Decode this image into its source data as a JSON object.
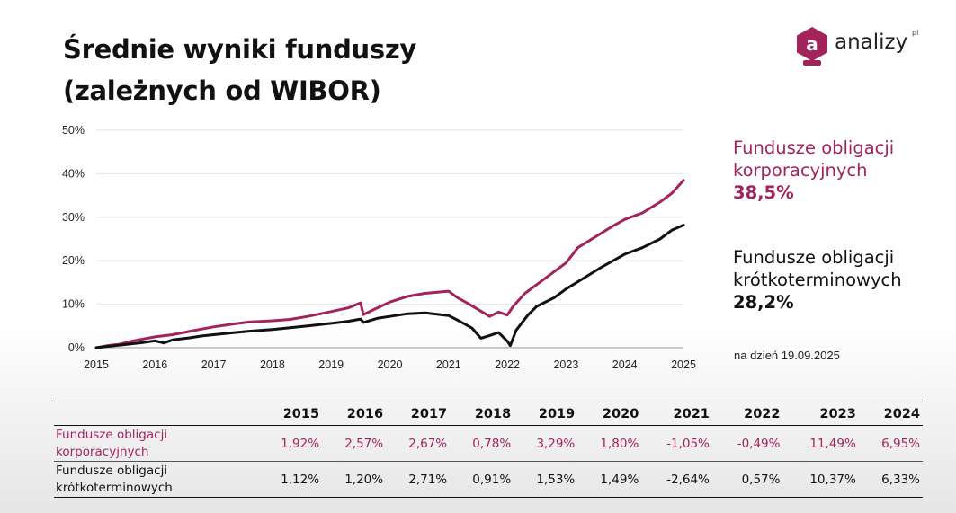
{
  "title": {
    "line1": "Średnie wyniki funduszy",
    "line2": "(zależnych od WIBOR)"
  },
  "logo": {
    "icon": "analizy-logo-icon",
    "text": "analizy",
    "superscript": "pl",
    "color": "#a3235c"
  },
  "colors": {
    "corporate": "#a3235c",
    "short_term": "#111111"
  },
  "series_labels": {
    "corporate": {
      "name_line1": "Fundusze obligacji",
      "name_line2": "korporacyjnych",
      "value": "38,5%"
    },
    "short_term": {
      "name_line1": "Fundusze obligacji",
      "name_line2": "krótkoterminowych",
      "value": "28,2%"
    }
  },
  "as_of": "na dzień 19.09.2025",
  "chart_data": {
    "type": "line",
    "title": "",
    "xlabel": "",
    "ylabel": "",
    "xlim": [
      2015.0,
      2025.0
    ],
    "ylim": [
      0,
      50
    ],
    "x_ticks": [
      "2015",
      "2016",
      "2017",
      "2018",
      "2019",
      "2020",
      "2021",
      "2022",
      "2023",
      "2024",
      "2025"
    ],
    "y_ticks": [
      "0%",
      "10%",
      "20%",
      "30%",
      "40%",
      "50%"
    ],
    "y_tick_values": [
      0,
      10,
      20,
      30,
      40,
      50
    ],
    "grid": true,
    "legend": "right",
    "series": [
      {
        "name": "Fundusze obligacji korporacyjnych",
        "color": "#a3235c",
        "points": [
          [
            2015.0,
            0.0
          ],
          [
            2015.2,
            0.5
          ],
          [
            2015.4,
            0.8
          ],
          [
            2015.6,
            1.5
          ],
          [
            2015.8,
            2.0
          ],
          [
            2016.0,
            2.5
          ],
          [
            2016.3,
            3.0
          ],
          [
            2016.6,
            3.8
          ],
          [
            2016.8,
            4.3
          ],
          [
            2017.0,
            4.8
          ],
          [
            2017.3,
            5.4
          ],
          [
            2017.6,
            5.9
          ],
          [
            2018.0,
            6.2
          ],
          [
            2018.3,
            6.5
          ],
          [
            2018.6,
            7.2
          ],
          [
            2019.0,
            8.3
          ],
          [
            2019.3,
            9.2
          ],
          [
            2019.5,
            10.3
          ],
          [
            2019.55,
            7.6
          ],
          [
            2019.7,
            8.6
          ],
          [
            2020.0,
            10.5
          ],
          [
            2020.3,
            11.8
          ],
          [
            2020.6,
            12.5
          ],
          [
            2021.0,
            13.0
          ],
          [
            2021.15,
            11.5
          ],
          [
            2021.35,
            10.0
          ],
          [
            2021.5,
            8.8
          ],
          [
            2021.7,
            7.2
          ],
          [
            2021.85,
            8.2
          ],
          [
            2022.0,
            7.5
          ],
          [
            2022.1,
            9.5
          ],
          [
            2022.3,
            12.5
          ],
          [
            2022.5,
            14.5
          ],
          [
            2022.8,
            17.5
          ],
          [
            2023.0,
            19.5
          ],
          [
            2023.2,
            23.0
          ],
          [
            2023.5,
            25.5
          ],
          [
            2023.8,
            28.0
          ],
          [
            2024.0,
            29.5
          ],
          [
            2024.3,
            31.0
          ],
          [
            2024.6,
            33.5
          ],
          [
            2024.8,
            35.5
          ],
          [
            2025.0,
            38.5
          ]
        ]
      },
      {
        "name": "Fundusze obligacji krótkoterminowych",
        "color": "#111111",
        "points": [
          [
            2015.0,
            0.0
          ],
          [
            2015.2,
            0.3
          ],
          [
            2015.4,
            0.6
          ],
          [
            2015.6,
            0.9
          ],
          [
            2015.8,
            1.2
          ],
          [
            2016.0,
            1.6
          ],
          [
            2016.15,
            1.1
          ],
          [
            2016.3,
            1.8
          ],
          [
            2016.6,
            2.3
          ],
          [
            2016.8,
            2.7
          ],
          [
            2017.0,
            3.0
          ],
          [
            2017.3,
            3.4
          ],
          [
            2017.6,
            3.8
          ],
          [
            2018.0,
            4.2
          ],
          [
            2018.3,
            4.6
          ],
          [
            2018.6,
            5.0
          ],
          [
            2019.0,
            5.6
          ],
          [
            2019.3,
            6.1
          ],
          [
            2019.5,
            6.6
          ],
          [
            2019.55,
            5.8
          ],
          [
            2019.8,
            6.8
          ],
          [
            2020.0,
            7.2
          ],
          [
            2020.3,
            7.8
          ],
          [
            2020.6,
            8.0
          ],
          [
            2021.0,
            7.4
          ],
          [
            2021.2,
            6.0
          ],
          [
            2021.4,
            4.5
          ],
          [
            2021.55,
            2.2
          ],
          [
            2021.7,
            2.8
          ],
          [
            2021.85,
            3.5
          ],
          [
            2022.0,
            1.5
          ],
          [
            2022.05,
            0.5
          ],
          [
            2022.15,
            4.0
          ],
          [
            2022.35,
            7.5
          ],
          [
            2022.5,
            9.5
          ],
          [
            2022.8,
            11.5
          ],
          [
            2023.0,
            13.5
          ],
          [
            2023.3,
            16.0
          ],
          [
            2023.6,
            18.5
          ],
          [
            2024.0,
            21.5
          ],
          [
            2024.3,
            23.0
          ],
          [
            2024.6,
            25.0
          ],
          [
            2024.8,
            27.0
          ],
          [
            2025.0,
            28.2
          ]
        ]
      }
    ]
  },
  "table": {
    "columns": [
      "",
      "2015",
      "2016",
      "2017",
      "2018",
      "2019",
      "2020",
      "2021",
      "2022",
      "2023",
      "2024"
    ],
    "rows": [
      {
        "label_line1": "Fundusze obligacji",
        "label_line2": "korporacyjnych",
        "values": [
          "1,92%",
          "2,57%",
          "2,67%",
          "0,78%",
          "3,29%",
          "1,80%",
          "-1,05%",
          "-0,49%",
          "11,49%",
          "6,95%"
        ]
      },
      {
        "label_line1": "Fundusze obligacji",
        "label_line2": "krótkoterminowych",
        "values": [
          "1,12%",
          "1,20%",
          "2,71%",
          "0,91%",
          "1,53%",
          "1,49%",
          "-2,64%",
          "0,57%",
          "10,37%",
          "6,33%"
        ]
      }
    ]
  }
}
